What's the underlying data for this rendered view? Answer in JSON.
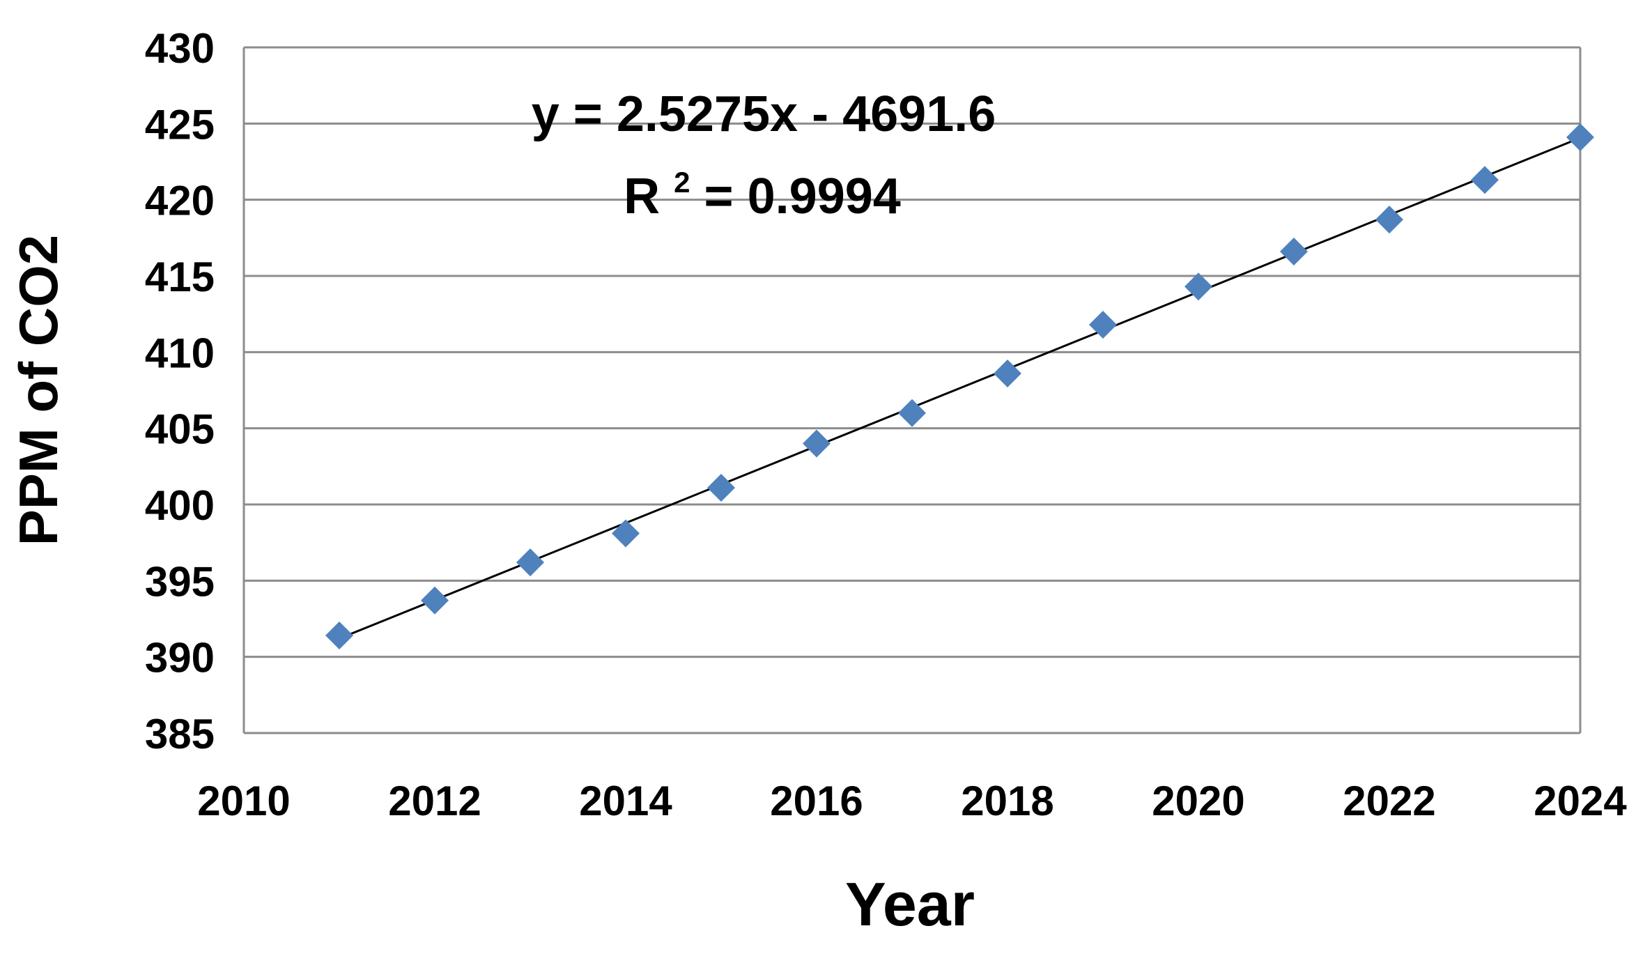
{
  "chart_data": {
    "type": "scatter",
    "title": "",
    "xlabel": "Year",
    "ylabel": "PPM of CO2",
    "xlim": [
      2010,
      2024
    ],
    "ylim": [
      385,
      430
    ],
    "xticks": [
      "2010",
      "2012",
      "2014",
      "2016",
      "2018",
      "2020",
      "2022",
      "2024"
    ],
    "yticks": [
      "385",
      "390",
      "395",
      "400",
      "405",
      "410",
      "415",
      "420",
      "425",
      "430"
    ],
    "grid": "horizontal",
    "legend": "none",
    "marker": "diamond",
    "marker_color": "#4F81BD",
    "trendline_color": "#000000",
    "series": [
      {
        "x": [
          2011,
          2012,
          2013,
          2014,
          2015,
          2016,
          2017,
          2018,
          2019,
          2020,
          2021,
          2022,
          2023,
          2024
        ],
        "y": [
          391.4,
          393.7,
          396.2,
          398.1,
          401.1,
          404.0,
          406.0,
          408.6,
          411.8,
          414.3,
          416.6,
          418.7,
          421.3,
          424.1
        ]
      }
    ],
    "trendline": {
      "slope": 2.5275,
      "intercept": -4691.6,
      "x_range": [
        2011,
        2024
      ]
    },
    "annotations": {
      "equation": "y = 2.5275x - 4691.6",
      "r_squared_prefix": "R",
      "r_squared_sup": "2",
      "r_squared_value": " = 0.9994"
    }
  }
}
